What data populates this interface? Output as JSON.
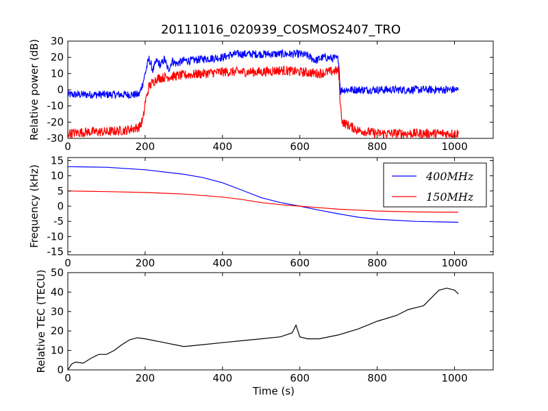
{
  "figure": {
    "title": "20111016_020939_COSMOS2407_TRO"
  },
  "chart_data": [
    {
      "type": "line",
      "id": "power",
      "title": "20111016_020939_COSMOS2407_TRO",
      "xlabel": "",
      "ylabel": "Relative power (dB)",
      "xlim": [
        0,
        1100
      ],
      "ylim": [
        -30,
        30
      ],
      "xticks": [
        0,
        200,
        400,
        600,
        800,
        1000
      ],
      "yticks": [
        -30,
        -20,
        -10,
        0,
        10,
        20,
        30
      ],
      "grid": false,
      "series": [
        {
          "color": "#0000ff",
          "noise": 2.5,
          "x": [
            0,
            50,
            100,
            150,
            185,
            195,
            205,
            210,
            220,
            230,
            240,
            250,
            260,
            270,
            280,
            300,
            320,
            350,
            400,
            430,
            450,
            500,
            550,
            600,
            620,
            640,
            660,
            700,
            705,
            710,
            750,
            800,
            850,
            900,
            950,
            1010
          ],
          "values": [
            -3,
            -3,
            -3,
            -3,
            -3,
            5,
            15,
            19,
            12,
            18,
            15,
            19,
            12,
            18,
            16,
            18,
            18,
            19,
            20,
            22,
            22,
            22,
            22,
            22,
            21,
            18,
            20,
            19,
            -1,
            0,
            0,
            0,
            0,
            0,
            0,
            0
          ]
        },
        {
          "color": "#ff0000",
          "noise": 3,
          "x": [
            0,
            50,
            100,
            150,
            185,
            195,
            200,
            210,
            230,
            260,
            300,
            350,
            400,
            450,
            500,
            550,
            600,
            650,
            700,
            705,
            710,
            750,
            800,
            850,
            900,
            940,
            1010
          ],
          "values": [
            -27,
            -26,
            -26,
            -25,
            -23,
            -18,
            -8,
            2,
            7,
            8,
            9,
            10,
            11,
            11,
            11,
            12,
            11,
            10,
            12,
            -10,
            -20,
            -25,
            -27,
            -27,
            -27,
            -27,
            -27
          ]
        }
      ]
    },
    {
      "type": "line",
      "id": "frequency",
      "title": "",
      "xlabel": "",
      "ylabel": "Frequency (kHz)",
      "xlim": [
        0,
        1100
      ],
      "ylim": [
        -16,
        16
      ],
      "xticks": [
        0,
        200,
        400,
        600,
        800,
        1000
      ],
      "yticks": [
        -15,
        -10,
        -5,
        0,
        5,
        10,
        15
      ],
      "grid": false,
      "legend": "top-right",
      "series": [
        {
          "name": "400MHz",
          "color": "#0000ff",
          "x": [
            0,
            100,
            200,
            300,
            350,
            400,
            450,
            500,
            550,
            600,
            650,
            700,
            750,
            800,
            900,
            1010
          ],
          "values": [
            13,
            12.8,
            12,
            10.5,
            9.4,
            7.7,
            5.3,
            2.8,
            1.2,
            0,
            -1.3,
            -2.5,
            -3.6,
            -4.3,
            -5,
            -5.3
          ]
        },
        {
          "name": "150MHz",
          "color": "#ff0000",
          "x": [
            0,
            100,
            200,
            300,
            400,
            450,
            500,
            550,
            600,
            650,
            700,
            800,
            900,
            1010
          ],
          "values": [
            5,
            4.8,
            4.5,
            4,
            3,
            2.2,
            1.2,
            0.5,
            0,
            -0.5,
            -1,
            -1.6,
            -1.9,
            -2
          ]
        }
      ]
    },
    {
      "type": "line",
      "id": "tec",
      "title": "",
      "xlabel": "Time (s)",
      "ylabel": "Relative TEC (TECU)",
      "xlim": [
        0,
        1100
      ],
      "ylim": [
        0,
        50
      ],
      "xticks": [
        0,
        200,
        400,
        600,
        800,
        1000
      ],
      "yticks": [
        0,
        10,
        20,
        30,
        40,
        50
      ],
      "grid": false,
      "series": [
        {
          "color": "#000000",
          "x": [
            0,
            10,
            20,
            40,
            60,
            80,
            100,
            120,
            140,
            160,
            180,
            200,
            250,
            300,
            350,
            400,
            450,
            500,
            550,
            580,
            590,
            600,
            620,
            650,
            700,
            750,
            800,
            850,
            880,
            900,
            920,
            950,
            960,
            980,
            1000,
            1010
          ],
          "values": [
            0,
            3,
            4,
            3.5,
            6,
            8,
            8,
            10,
            13,
            15.5,
            16.5,
            16,
            14,
            12,
            13,
            14,
            15,
            16,
            17,
            19,
            23,
            17,
            16,
            16,
            18,
            21,
            25,
            28,
            31,
            32,
            33,
            39,
            41,
            42,
            41,
            39
          ]
        }
      ]
    }
  ]
}
